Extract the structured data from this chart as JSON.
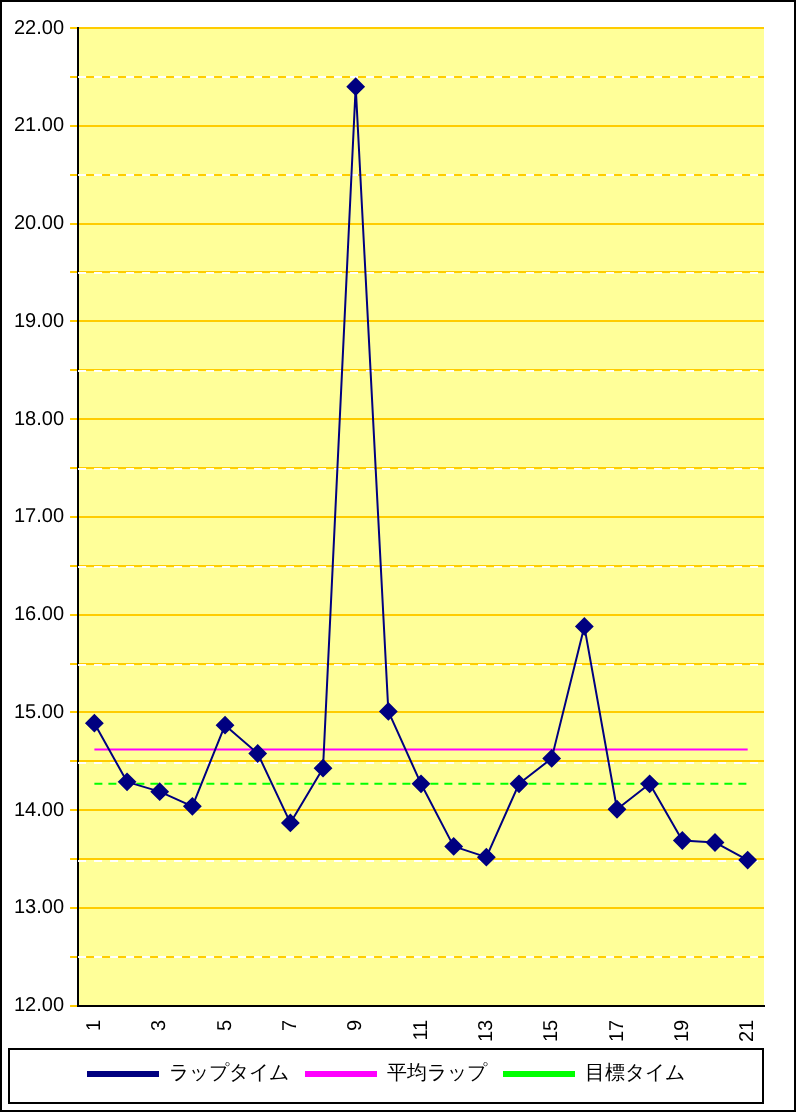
{
  "chart_data": {
    "type": "line",
    "categories": [
      "1",
      null,
      "3",
      null,
      "5",
      null,
      "7",
      null,
      "9",
      null,
      "11",
      null,
      "13",
      null,
      "15",
      null,
      "17",
      null,
      "19",
      null,
      "21"
    ],
    "series": [
      {
        "name": "ラップタイム",
        "color": "#000080",
        "marker": "diamond",
        "line_style": "solid",
        "values": [
          14.89,
          14.29,
          14.19,
          14.04,
          14.87,
          14.58,
          13.87,
          14.43,
          21.4,
          15.01,
          14.27,
          13.63,
          13.52,
          14.27,
          14.53,
          15.88,
          14.01,
          14.27,
          13.69,
          13.67,
          13.49
        ]
      },
      {
        "name": "平均ラップ",
        "color": "#ff00ff",
        "marker": "none",
        "line_style": "solid",
        "values": [
          14.62,
          14.62,
          14.62,
          14.62,
          14.62,
          14.62,
          14.62,
          14.62,
          14.62,
          14.62,
          14.62,
          14.62,
          14.62,
          14.62,
          14.62,
          14.62,
          14.62,
          14.62,
          14.62,
          14.62,
          14.62
        ]
      },
      {
        "name": "目標タイム",
        "color": "#00ff00",
        "marker": "none",
        "line_style": "dashed",
        "values": [
          14.27,
          14.27,
          14.27,
          14.27,
          14.27,
          14.27,
          14.27,
          14.27,
          14.27,
          14.27,
          14.27,
          14.27,
          14.27,
          14.27,
          14.27,
          14.27,
          14.27,
          14.27,
          14.27,
          14.27,
          14.27
        ]
      }
    ],
    "ylim": [
      12,
      22
    ],
    "yticks": [
      {
        "value": 12,
        "label": "12.00"
      },
      {
        "value": 12.5,
        "label": null
      },
      {
        "value": 13,
        "label": "13.00"
      },
      {
        "value": 13.5,
        "label": null
      },
      {
        "value": 14,
        "label": "14.00"
      },
      {
        "value": 14.5,
        "label": null
      },
      {
        "value": 15,
        "label": "15.00"
      },
      {
        "value": 15.5,
        "label": null
      },
      {
        "value": 16,
        "label": "16.00"
      },
      {
        "value": 16.5,
        "label": null
      },
      {
        "value": 17,
        "label": "17.00"
      },
      {
        "value": 17.5,
        "label": null
      },
      {
        "value": 18,
        "label": "18.00"
      },
      {
        "value": 18.5,
        "label": null
      },
      {
        "value": 19,
        "label": "19.00"
      },
      {
        "value": 19.5,
        "label": null
      },
      {
        "value": 20,
        "label": "20.00"
      },
      {
        "value": 20.5,
        "label": null
      },
      {
        "value": 21,
        "label": "21.00"
      },
      {
        "value": 21.5,
        "label": null
      },
      {
        "value": 22,
        "label": "22.00"
      }
    ],
    "grid": "y",
    "legend": "bottom"
  }
}
